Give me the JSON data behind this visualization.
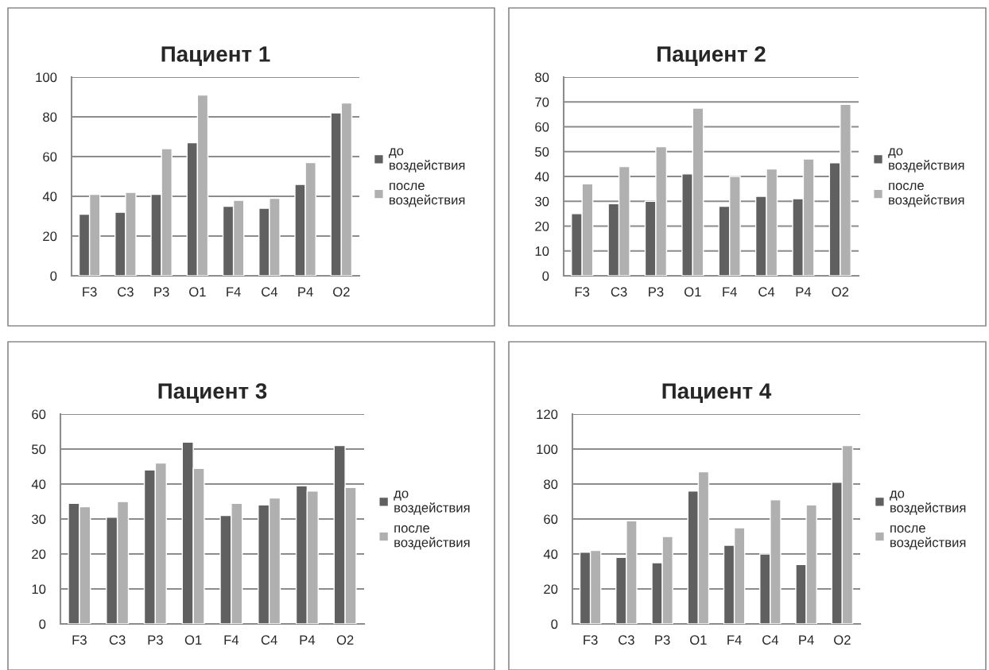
{
  "chart_data": [
    {
      "type": "bar",
      "title": "Пациент 1",
      "categories": [
        "F3",
        "C3",
        "P3",
        "O1",
        "F4",
        "C4",
        "P4",
        "O2"
      ],
      "series": [
        {
          "name": "до воздействия",
          "color": "#606060",
          "values": [
            31,
            32,
            41,
            67,
            35,
            34,
            46,
            82
          ]
        },
        {
          "name": "после воздействия",
          "color": "#b0b0b0",
          "values": [
            41,
            42,
            64,
            91,
            38,
            39,
            57,
            87
          ]
        }
      ],
      "ylim": [
        0,
        100
      ],
      "yticks": [
        0,
        20,
        40,
        60,
        80,
        100
      ],
      "grid": "y",
      "legend": "right"
    },
    {
      "type": "bar",
      "title": "Пациент 2",
      "categories": [
        "F3",
        "C3",
        "P3",
        "O1",
        "F4",
        "C4",
        "P4",
        "O2"
      ],
      "series": [
        {
          "name": "до воздействия",
          "color": "#606060",
          "values": [
            25,
            29,
            30,
            41,
            28,
            32,
            31,
            45.5
          ]
        },
        {
          "name": "после воздействия",
          "color": "#b0b0b0",
          "values": [
            37,
            44,
            52,
            67.5,
            40,
            43,
            47,
            69
          ]
        }
      ],
      "ylim": [
        0,
        80
      ],
      "yticks": [
        0,
        10,
        20,
        30,
        40,
        50,
        60,
        70,
        80
      ],
      "grid": "y",
      "legend": "right"
    },
    {
      "type": "bar",
      "title": "Пациент 3",
      "categories": [
        "F3",
        "C3",
        "P3",
        "O1",
        "F4",
        "C4",
        "P4",
        "O2"
      ],
      "series": [
        {
          "name": "до воздействия",
          "color": "#606060",
          "values": [
            34.5,
            30.5,
            44,
            52,
            31,
            34,
            39.5,
            51
          ]
        },
        {
          "name": "после воздействия",
          "color": "#b0b0b0",
          "values": [
            33.5,
            35,
            46,
            44.5,
            34.5,
            36,
            38,
            39
          ]
        }
      ],
      "ylim": [
        0,
        60
      ],
      "yticks": [
        0,
        10,
        20,
        30,
        40,
        50,
        60
      ],
      "grid": "y",
      "legend": "right"
    },
    {
      "type": "bar",
      "title": "Пациент 4",
      "categories": [
        "F3",
        "C3",
        "P3",
        "O1",
        "F4",
        "C4",
        "P4",
        "O2"
      ],
      "series": [
        {
          "name": "до воздействия",
          "color": "#606060",
          "values": [
            41,
            38,
            35,
            76,
            45,
            40,
            34,
            81
          ]
        },
        {
          "name": "после воздействия",
          "color": "#b0b0b0",
          "values": [
            42,
            59,
            50,
            87,
            55,
            71,
            68,
            102
          ]
        }
      ],
      "ylim": [
        0,
        120
      ],
      "yticks": [
        0,
        20,
        40,
        60,
        80,
        100,
        120
      ],
      "grid": "y",
      "legend": "right"
    }
  ]
}
